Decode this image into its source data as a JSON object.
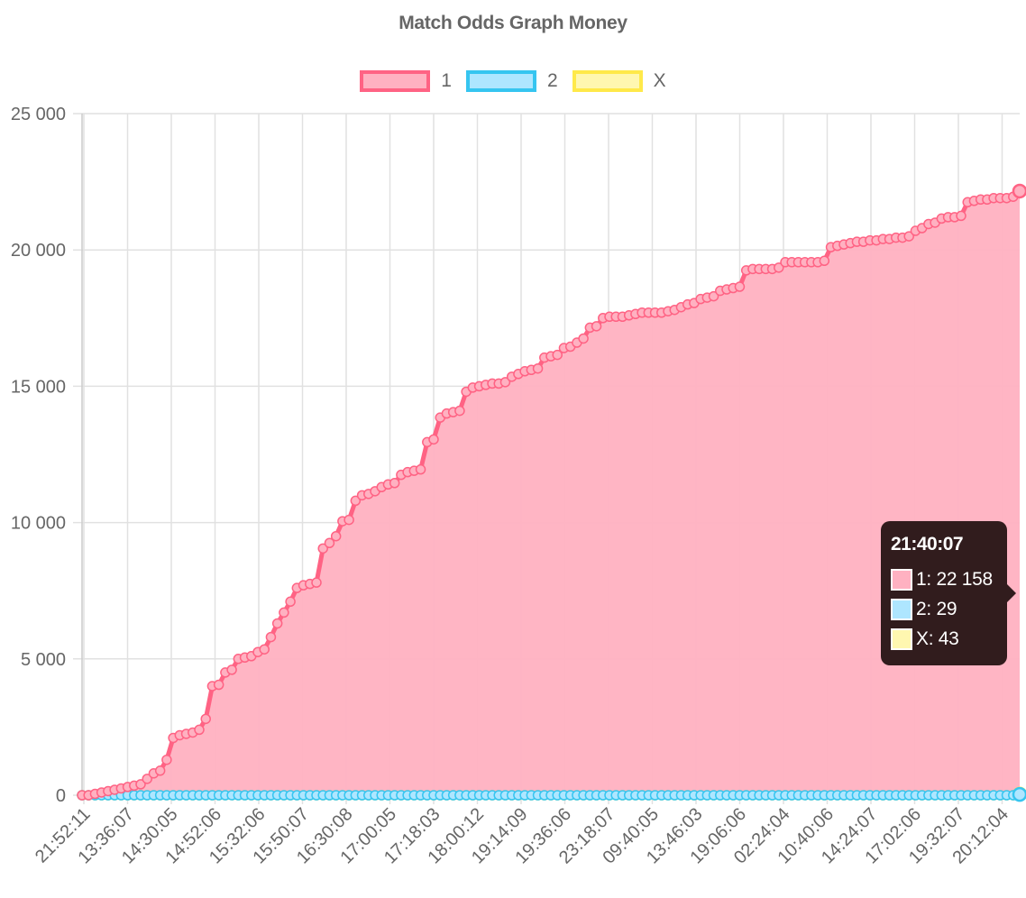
{
  "chart_data": {
    "type": "area",
    "title": "Match Odds Graph Money",
    "ylim": [
      0,
      25000
    ],
    "y_ticks": [
      "25 000",
      "20 000",
      "15 000",
      "10 000",
      "5 000",
      "0"
    ],
    "y_tick_values": [
      25000,
      20000,
      15000,
      10000,
      5000,
      0
    ],
    "x_tick_labels": [
      "21:52:11",
      "13:36:07",
      "14:30:05",
      "14:52:06",
      "15:32:06",
      "15:50:07",
      "16:30:08",
      "17:00:05",
      "17:18:03",
      "18:00:12",
      "19:14:09",
      "19:36:06",
      "23:18:07",
      "09:40:05",
      "13:46:03",
      "19:06:06",
      "02:24:04",
      "10:40:06",
      "14:24:07",
      "17:02:06",
      "19:32:07",
      "20:12:04"
    ],
    "legend_position": "top",
    "grid": true,
    "series": [
      {
        "name": "1",
        "border_color": "#ff6384",
        "fill_color": "#ffb1c1",
        "values": [
          0,
          0,
          50,
          100,
          150,
          200,
          250,
          300,
          350,
          400,
          600,
          800,
          900,
          1300,
          2100,
          2200,
          2250,
          2300,
          2400,
          2800,
          4000,
          4050,
          4500,
          4600,
          5000,
          5050,
          5100,
          5250,
          5350,
          5800,
          6300,
          6700,
          7100,
          7600,
          7700,
          7750,
          7800,
          9050,
          9250,
          9500,
          10050,
          10100,
          10800,
          11000,
          11050,
          11150,
          11300,
          11400,
          11450,
          11750,
          11850,
          11900,
          11950,
          12950,
          13050,
          13850,
          14000,
          14050,
          14100,
          14800,
          14950,
          15000,
          15050,
          15100,
          15100,
          15150,
          15350,
          15450,
          15550,
          15600,
          15650,
          16050,
          16100,
          16150,
          16400,
          16450,
          16600,
          16750,
          17150,
          17200,
          17500,
          17550,
          17550,
          17550,
          17600,
          17650,
          17700,
          17700,
          17700,
          17700,
          17750,
          17800,
          17900,
          18000,
          18050,
          18200,
          18250,
          18300,
          18500,
          18550,
          18600,
          18650,
          19250,
          19300,
          19300,
          19300,
          19300,
          19350,
          19550,
          19550,
          19550,
          19550,
          19550,
          19550,
          19600,
          20100,
          20150,
          20200,
          20250,
          20300,
          20300,
          20350,
          20350,
          20400,
          20400,
          20450,
          20450,
          20500,
          20700,
          20800,
          20950,
          21000,
          21150,
          21200,
          21200,
          21250,
          21750,
          21800,
          21850,
          21850,
          21900,
          21900,
          21900,
          21950,
          22158
        ]
      },
      {
        "name": "2",
        "border_color": "#36c5f0",
        "fill_color": "#aee6ff",
        "values": [
          0,
          0,
          0,
          0,
          0,
          0,
          0,
          0,
          0,
          0,
          0,
          0,
          0,
          0,
          0,
          0,
          0,
          0,
          0,
          0,
          0,
          0,
          0,
          0,
          0,
          0,
          0,
          0,
          0,
          0,
          0,
          0,
          0,
          0,
          0,
          0,
          0,
          0,
          0,
          0,
          0,
          0,
          0,
          0,
          0,
          0,
          0,
          0,
          0,
          0,
          0,
          0,
          0,
          0,
          0,
          0,
          0,
          0,
          0,
          0,
          0,
          0,
          0,
          0,
          0,
          0,
          0,
          0,
          0,
          0,
          0,
          0,
          0,
          0,
          0,
          0,
          0,
          0,
          0,
          0,
          0,
          0,
          0,
          0,
          0,
          0,
          0,
          0,
          0,
          0,
          0,
          0,
          0,
          0,
          0,
          0,
          0,
          0,
          0,
          0,
          0,
          0,
          0,
          0,
          0,
          0,
          0,
          0,
          0,
          0,
          0,
          0,
          0,
          0,
          0,
          0,
          0,
          0,
          0,
          0,
          0,
          0,
          0,
          0,
          0,
          0,
          0,
          0,
          0,
          0,
          0,
          0,
          0,
          0,
          0,
          0,
          0,
          0,
          0,
          0,
          0,
          0,
          0,
          0,
          29
        ]
      },
      {
        "name": "X",
        "border_color": "#ffe94a",
        "fill_color": "#fff7b0",
        "values": [
          0,
          0,
          0,
          0,
          0,
          0,
          0,
          0,
          0,
          0,
          0,
          0,
          0,
          0,
          0,
          0,
          0,
          0,
          0,
          0,
          0,
          0,
          0,
          0,
          0,
          0,
          0,
          0,
          0,
          0,
          0,
          0,
          0,
          0,
          0,
          0,
          0,
          0,
          0,
          0,
          0,
          0,
          0,
          0,
          0,
          0,
          0,
          0,
          0,
          0,
          0,
          0,
          0,
          0,
          0,
          0,
          0,
          0,
          0,
          0,
          0,
          0,
          0,
          0,
          0,
          0,
          0,
          0,
          0,
          0,
          0,
          0,
          0,
          0,
          0,
          0,
          0,
          0,
          0,
          0,
          0,
          0,
          0,
          0,
          0,
          0,
          0,
          0,
          0,
          0,
          0,
          0,
          0,
          0,
          0,
          0,
          0,
          0,
          0,
          0,
          0,
          0,
          0,
          0,
          0,
          0,
          0,
          0,
          0,
          0,
          0,
          0,
          0,
          0,
          0,
          0,
          0,
          0,
          0,
          0,
          0,
          0,
          0,
          0,
          0,
          0,
          0,
          0,
          0,
          0,
          0,
          0,
          0,
          0,
          0,
          0,
          0,
          0,
          0,
          0,
          0,
          0,
          0,
          0,
          43
        ]
      }
    ],
    "tooltip": {
      "title": "21:40:07",
      "rows": [
        "1: 22 158",
        "2: 29",
        "X: 43"
      ]
    }
  }
}
